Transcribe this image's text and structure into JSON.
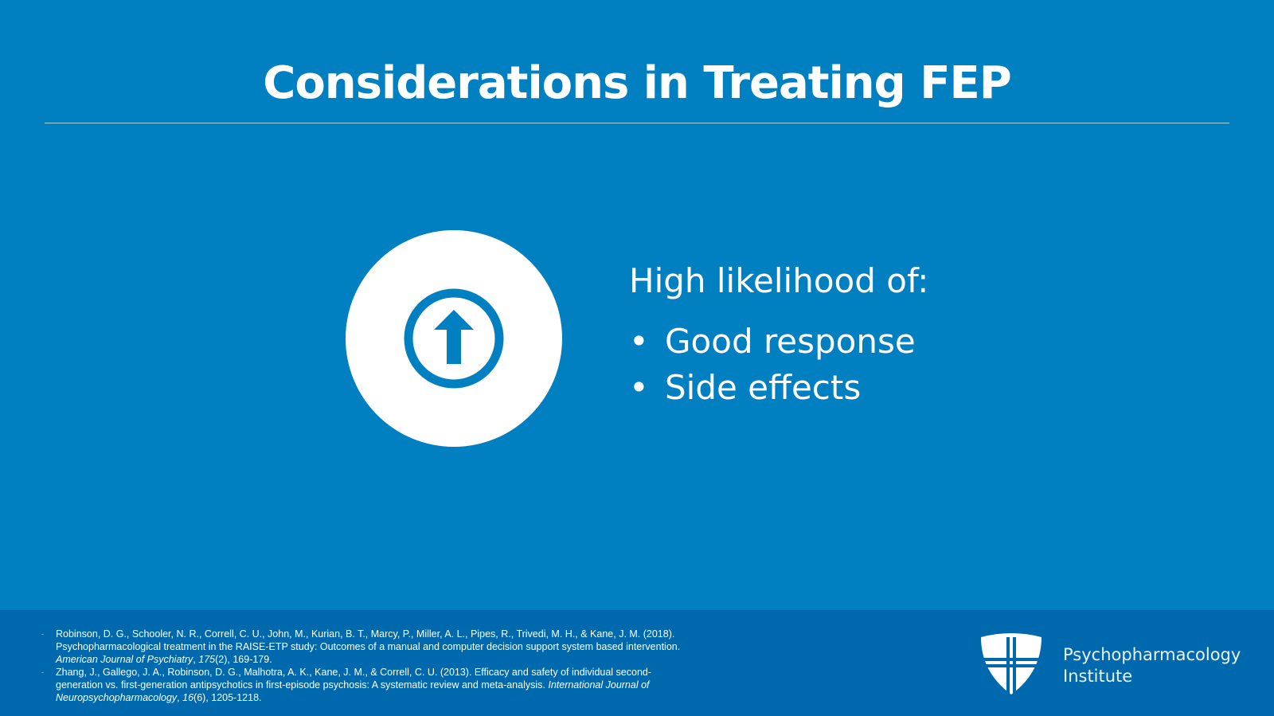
{
  "slide": {
    "title": "Considerations in Treating FEP",
    "heading": "High likelihood of:",
    "bullets": [
      "Good response",
      "Side effects"
    ],
    "references": [
      [
        {
          "text": "Robinson, D. G., Schooler, N. R., Correll, C. U., John, M., Kurian, B. T., Marcy, P., Miller, A. L., Pipes, R., Trivedi, M. H., & Kane, J. M. (2018). Psychopharmacological treatment in the RAISE-ETP study: Outcomes of a manual and computer decision support system based intervention. ",
          "italic": false
        },
        {
          "text": "American Journal of Psychiatry",
          "italic": true
        },
        {
          "text": ", ",
          "italic": false
        },
        {
          "text": "175",
          "italic": true
        },
        {
          "text": "(2), 169-179.",
          "italic": false
        }
      ],
      [
        {
          "text": "Zhang, J., Gallego, J. A., Robinson, D. G., Malhotra, A. K., Kane, J. M., & Correll, C. U. (2013). Efficacy and safety of individual second-generation vs. first-generation antipsychotics in first-episode psychosis: A systematic review and meta-analysis. ",
          "italic": false
        },
        {
          "text": "International Journal of Neuropsychopharmacology",
          "italic": true
        },
        {
          "text": ", ",
          "italic": false
        },
        {
          "text": "16",
          "italic": true
        },
        {
          "text": "(6), 1205-1218.",
          "italic": false
        }
      ]
    ],
    "logo": {
      "line1": "Psychopharmacology",
      "line2": "Institute"
    }
  }
}
